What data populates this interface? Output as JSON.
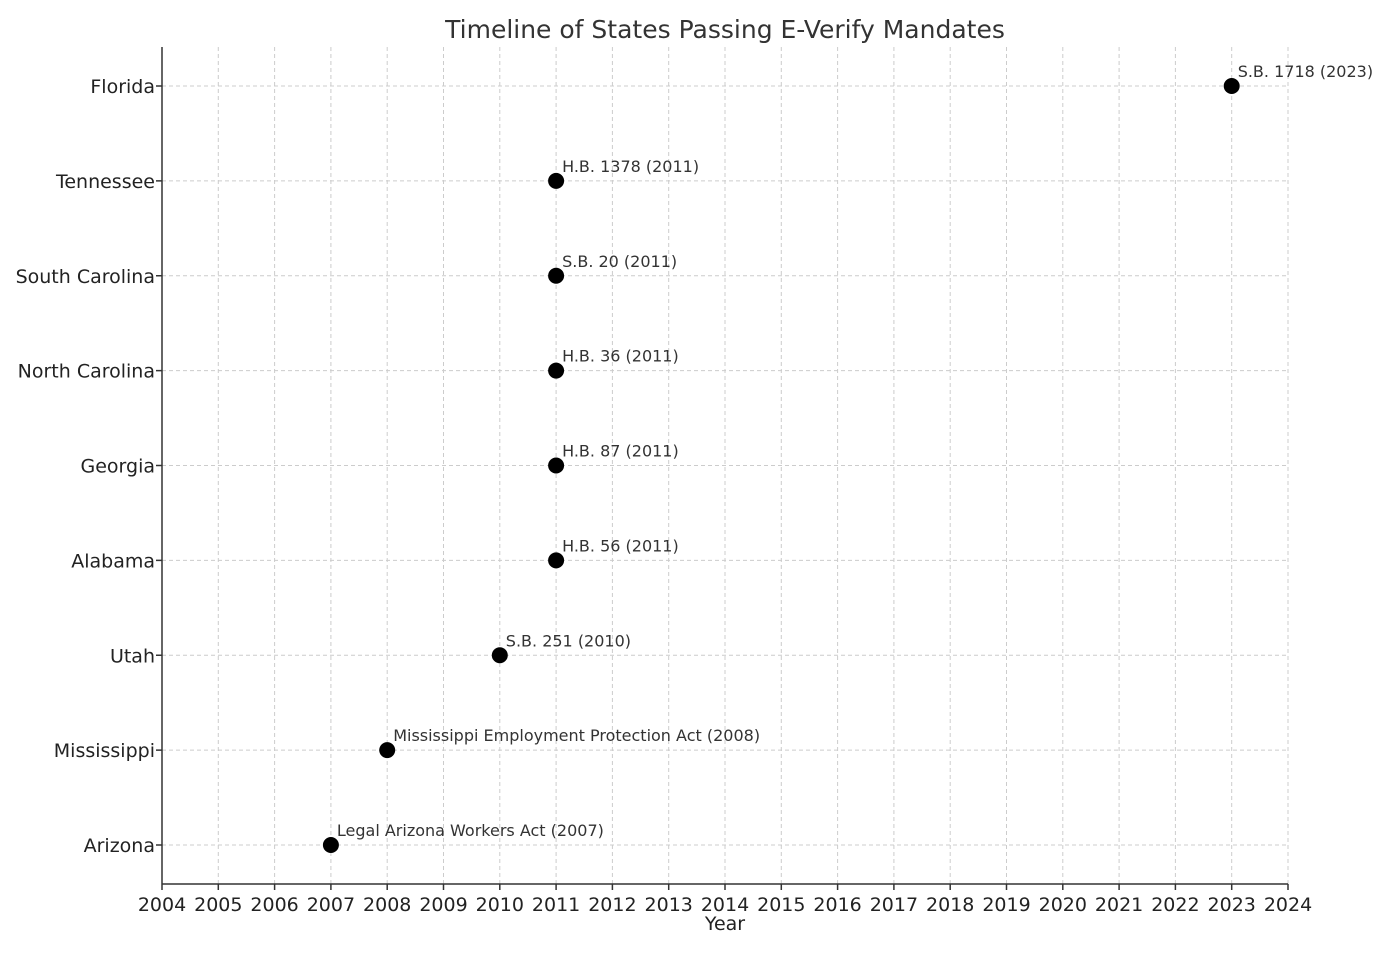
{
  "chart_data": {
    "type": "scatter",
    "title": "Timeline of States Passing E-Verify Mandates",
    "xlabel": "Year",
    "ylabel": "",
    "xlim": [
      2004,
      2024
    ],
    "xticks": [
      2004,
      2005,
      2006,
      2007,
      2008,
      2009,
      2010,
      2011,
      2012,
      2013,
      2014,
      2015,
      2016,
      2017,
      2018,
      2019,
      2020,
      2021,
      2022,
      2023,
      2024
    ],
    "categories": [
      "Arizona",
      "Mississippi",
      "Utah",
      "Alabama",
      "Georgia",
      "North Carolina",
      "South Carolina",
      "Tennessee",
      "Florida"
    ],
    "points": [
      {
        "state": "Arizona",
        "year": 2007,
        "label": "Legal Arizona Workers Act (2007)"
      },
      {
        "state": "Mississippi",
        "year": 2008,
        "label": "Mississippi Employment Protection Act (2008)"
      },
      {
        "state": "Utah",
        "year": 2010,
        "label": "S.B. 251 (2010)"
      },
      {
        "state": "Alabama",
        "year": 2011,
        "label": "H.B. 56 (2011)"
      },
      {
        "state": "Georgia",
        "year": 2011,
        "label": "H.B. 87 (2011)"
      },
      {
        "state": "North Carolina",
        "year": 2011,
        "label": "H.B. 36 (2011)"
      },
      {
        "state": "South Carolina",
        "year": 2011,
        "label": "S.B. 20 (2011)"
      },
      {
        "state": "Tennessee",
        "year": 2011,
        "label": "H.B. 1378 (2011)"
      },
      {
        "state": "Florida",
        "year": 2023,
        "label": "S.B. 1718 (2023)"
      }
    ],
    "grid": true,
    "marker_color": "#000000"
  }
}
